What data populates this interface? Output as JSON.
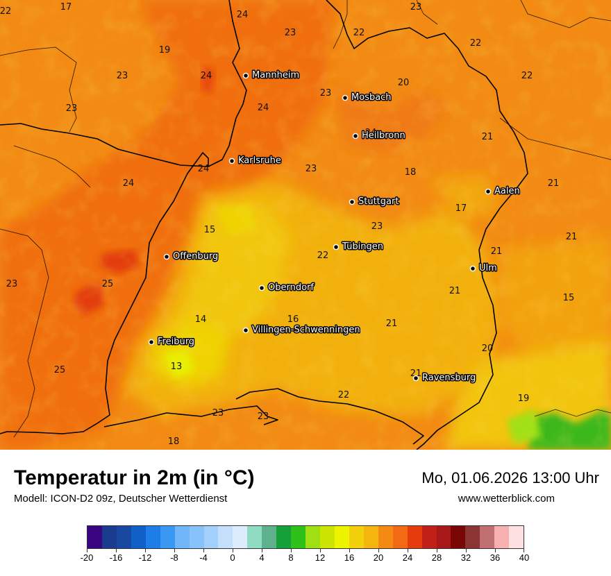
{
  "title": "Temperatur in 2m (in °C)",
  "model_info": "Modell: ICON-D2 09z, Deutscher Wetterdienst",
  "datetime": "Mo, 01.06.2026 13:00 Uhr",
  "website": "www.wetterblick.com",
  "colors": {
    "map_base": "#f28a13",
    "warm_orange": "#f06e10",
    "hot_red": "#e33c0c",
    "yellow_orange": "#f1b60a",
    "yellow": "#efd304",
    "pale_yellow": "#e8ef04",
    "green": "#3cb81e",
    "border": "#000000"
  },
  "cities": [
    {
      "name": "Mannheim"
    },
    {
      "name": "Mosbach"
    },
    {
      "name": "Heilbronn"
    },
    {
      "name": "Karlsruhe"
    },
    {
      "name": "Stuttgart"
    },
    {
      "name": "Aalen"
    },
    {
      "name": "Tübingen"
    },
    {
      "name": "Offenburg"
    },
    {
      "name": "Ulm"
    },
    {
      "name": "Oberndorf"
    },
    {
      "name": "Villingen-Schwenningen"
    },
    {
      "name": "Freiburg"
    },
    {
      "name": "Ravensburg"
    }
  ],
  "temperature_labels": [
    "22",
    "17",
    "24",
    "23",
    "19",
    "22",
    "22",
    "23",
    "24",
    "20",
    "22",
    "23",
    "24",
    "23",
    "23",
    "21",
    "24",
    "24",
    "23",
    "18",
    "21",
    "24",
    "17",
    "15",
    "23",
    "21",
    "22",
    "21",
    "23",
    "25",
    "21",
    "15",
    "16",
    "14",
    "21",
    "20",
    "13",
    "21",
    "25",
    "22",
    "19",
    "23",
    "23",
    "18"
  ],
  "legend": {
    "tick_labels": [
      "-20",
      "-16",
      "-12",
      "-8",
      "-4",
      "0",
      "4",
      "8",
      "12",
      "16",
      "20",
      "24",
      "28",
      "32",
      "36",
      "40"
    ],
    "colors": [
      "#3a0580",
      "#1a3c8f",
      "#1848a0",
      "#1060c8",
      "#1e7ee8",
      "#3a98f5",
      "#70b6f8",
      "#88c2fa",
      "#a2d0fb",
      "#c4e0fd",
      "#dcecfd",
      "#90dcc2",
      "#5fb08c",
      "#16a03a",
      "#30c01a",
      "#a0e012",
      "#cce402",
      "#eef400",
      "#f2d00c",
      "#f4b60e",
      "#f48a14",
      "#f46a14",
      "#e43c0c",
      "#c02018",
      "#a81818",
      "#7a0606",
      "#8c3434",
      "#c07070",
      "#f8b0b0",
      "#fde0e0"
    ]
  }
}
